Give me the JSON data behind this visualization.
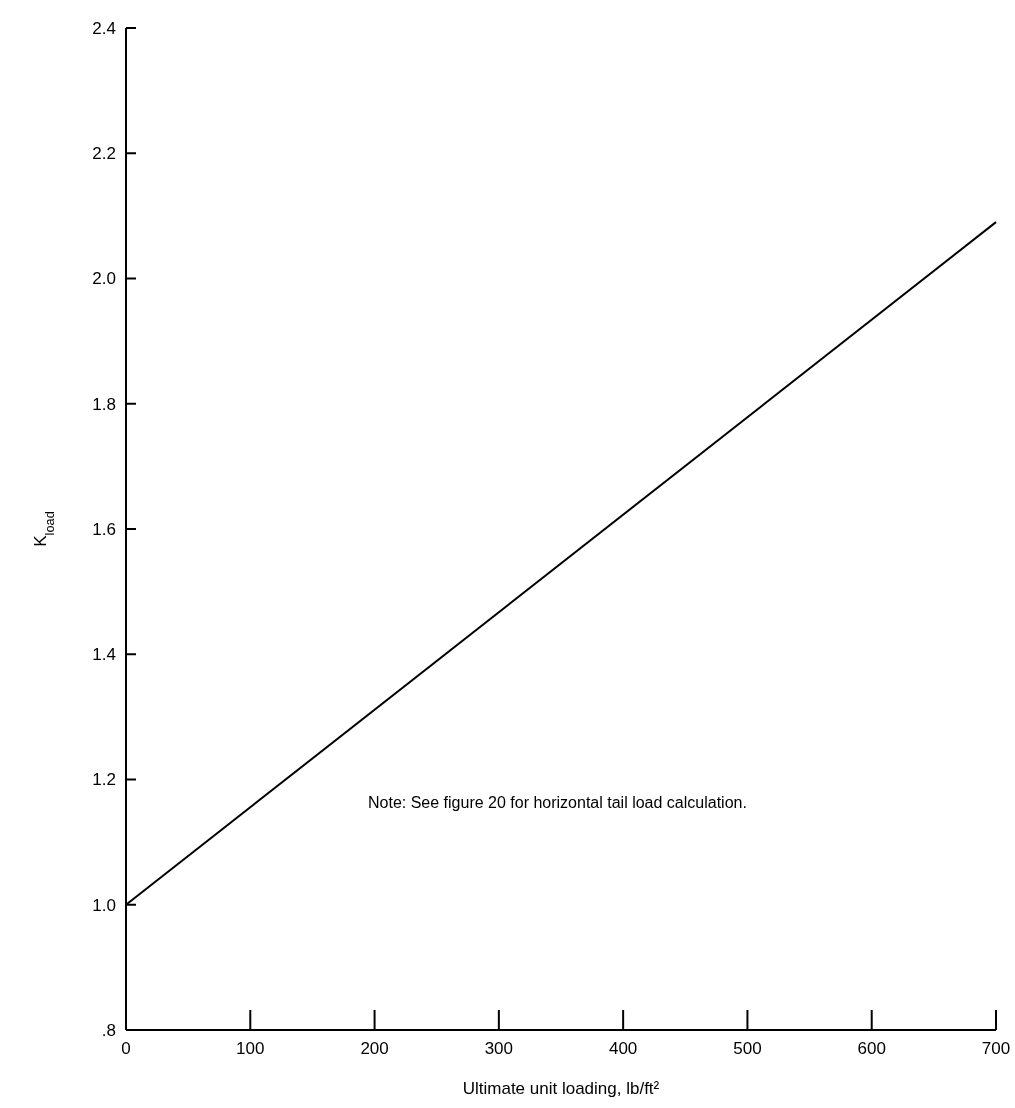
{
  "chart_data": {
    "type": "line",
    "xlabel": "Ultimate unit loading, lb/ft²",
    "ylabel": "K$_{load}$",
    "x": [
      0,
      700
    ],
    "series": [
      {
        "color": "#000000",
        "values": [
          1.0,
          2.09
        ]
      }
    ],
    "xlim": [
      0,
      700
    ],
    "xticks": [
      0,
      100,
      200,
      300,
      400,
      500,
      600,
      700
    ],
    "ylim": [
      0.8,
      2.4
    ],
    "yticks": [
      {
        "value": 0.8,
        "label": ".8"
      },
      {
        "value": 1.0,
        "label": "1.0"
      },
      {
        "value": 1.2,
        "label": "1.2"
      },
      {
        "value": 1.4,
        "label": "1.4"
      },
      {
        "value": 1.6,
        "label": "1.6"
      },
      {
        "value": 1.8,
        "label": "1.8"
      },
      {
        "value": 2.0,
        "label": "2.0"
      },
      {
        "value": 2.2,
        "label": "2.2"
      },
      {
        "value": 2.4,
        "label": "2.4"
      }
    ],
    "annotations": [
      "Note:  See figure 20 for horizontal tail load calculation."
    ],
    "marker": "none",
    "line_style": "solid"
  }
}
